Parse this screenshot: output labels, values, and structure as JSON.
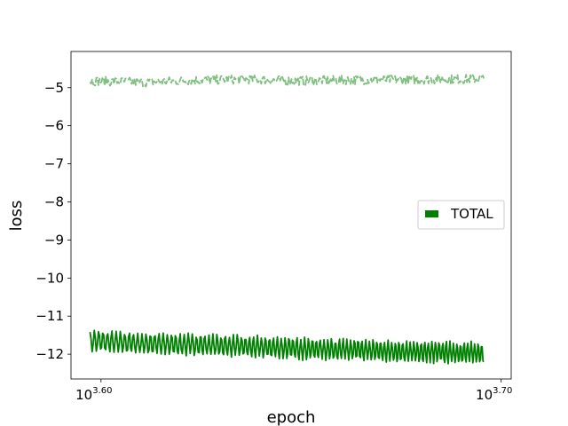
{
  "chart_data": {
    "type": "line",
    "xscale": "log",
    "xlabel": "epoch",
    "ylabel": "loss",
    "xlim_log10": [
      3.5925,
      3.7025
    ],
    "ylim": [
      -12.65,
      -4.05
    ],
    "x_ticks": [
      {
        "log10": 3.6,
        "base": "10",
        "exp": "3.60"
      },
      {
        "log10": 3.7,
        "base": "10",
        "exp": "3.70"
      }
    ],
    "y_ticks": [
      {
        "value": -5,
        "label": "−5"
      },
      {
        "value": -6,
        "label": "−6"
      },
      {
        "value": -7,
        "label": "−7"
      },
      {
        "value": -8,
        "label": "−8"
      },
      {
        "value": -9,
        "label": "−9"
      },
      {
        "value": -10,
        "label": "−10"
      },
      {
        "value": -11,
        "label": "−11"
      },
      {
        "value": -12,
        "label": "−12"
      }
    ],
    "legend": {
      "placement": "center-right",
      "entries": [
        {
          "label": "TOTAL",
          "color": "#008000"
        }
      ]
    },
    "series": [
      {
        "name": "TOTAL",
        "color": "#008000",
        "linestyle": "solid",
        "epoch_start": 3956,
        "epoch_end": 4962,
        "mean": [
          -11.65,
          -11.72,
          -11.75,
          -11.8,
          -11.85,
          -11.88,
          -11.93,
          -11.95,
          -11.97
        ],
        "amplitude": 0.27,
        "period_epochs": 10
      },
      {
        "color": "#7fbf7f",
        "linestyle": "dashed",
        "epoch_start": 3956,
        "epoch_end": 4962,
        "mean": [
          -4.82,
          -4.86,
          -4.8,
          -4.78,
          -4.82,
          -4.8,
          -4.79,
          -4.78,
          -4.77
        ],
        "noise": 0.12
      }
    ]
  }
}
